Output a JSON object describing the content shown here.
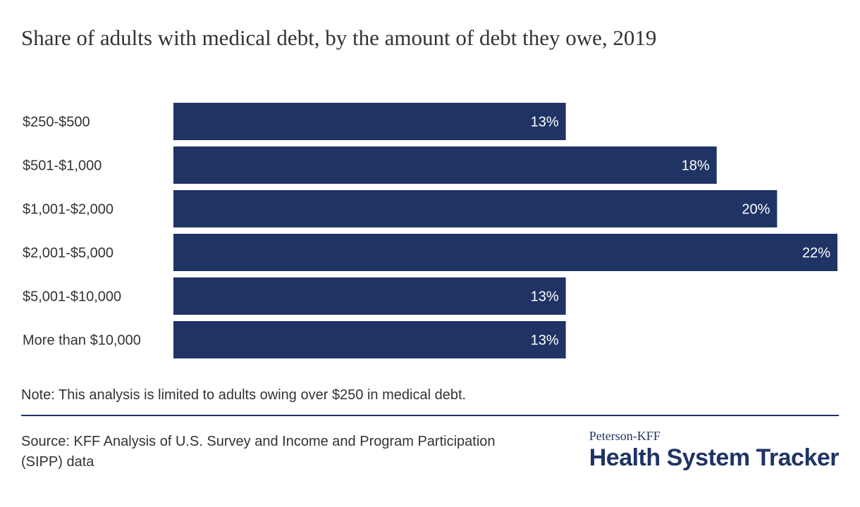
{
  "chart_data": {
    "type": "bar",
    "orientation": "horizontal",
    "title": "Share of adults with medical debt, by the amount of debt they owe, 2019",
    "categories": [
      "$250-$500",
      "$501-$1,000",
      "$1,001-$2,000",
      "$2,001-$5,000",
      "$5,001-$10,000",
      "More than $10,000"
    ],
    "values": [
      13,
      18,
      20,
      22,
      13,
      13
    ],
    "value_labels": [
      "13%",
      "18%",
      "20%",
      "22%",
      "13%",
      "13%"
    ],
    "unit": "%",
    "xlim": [
      0,
      22
    ],
    "grid": false,
    "legend": "none",
    "bar_color": "#1f3464",
    "label_color": "#ffffff"
  },
  "note": "Note: This analysis is limited to adults owing over $250 in medical debt.",
  "source": "Source: KFF Analysis of U.S. Survey and Income and Program Participation (SIPP) data",
  "logo": {
    "top": "Peterson-KFF",
    "main": "Health System Tracker"
  },
  "colors": {
    "accent": "#1f3464"
  }
}
